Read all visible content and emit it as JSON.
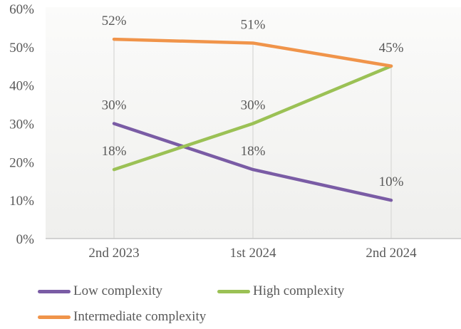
{
  "colors": {
    "text": "#595959",
    "axis_line": "#C6C6C6",
    "drop_line": "#DCDCDA",
    "plot_bg_top": "#FBFBFA",
    "plot_bg_bottom": "#EFEFED",
    "low_complexity": "#7A5CA5",
    "high_complexity": "#9BC155",
    "intermediate_complexity": "#F0944A"
  },
  "chart_data": {
    "type": "line",
    "title": "",
    "xlabel": "",
    "ylabel": "",
    "categories": [
      "2nd 2023",
      "1st 2024",
      "2nd 2024"
    ],
    "series": [
      {
        "name": "Low complexity",
        "color": "#7A5CA5",
        "values": [
          30,
          18,
          10
        ]
      },
      {
        "name": "High complexity",
        "color": "#9BC155",
        "values": [
          18,
          30,
          45
        ]
      },
      {
        "name": "Intermediate complexity",
        "color": "#F0944A",
        "values": [
          52,
          51,
          45
        ]
      }
    ],
    "ylim": [
      0,
      60
    ],
    "y_tick_labels": [
      "60%",
      "50%",
      "40%",
      "30%",
      "20%",
      "10%",
      "0%"
    ],
    "data_label_format": "{v}%",
    "data_labels_shown": [
      "52%",
      "51%",
      "45%",
      "30%",
      "30%",
      "18%",
      "18%",
      "10%"
    ],
    "legend_position": "bottom",
    "grid": "vertical-drop-lines",
    "horizontal_gridlines": false
  }
}
